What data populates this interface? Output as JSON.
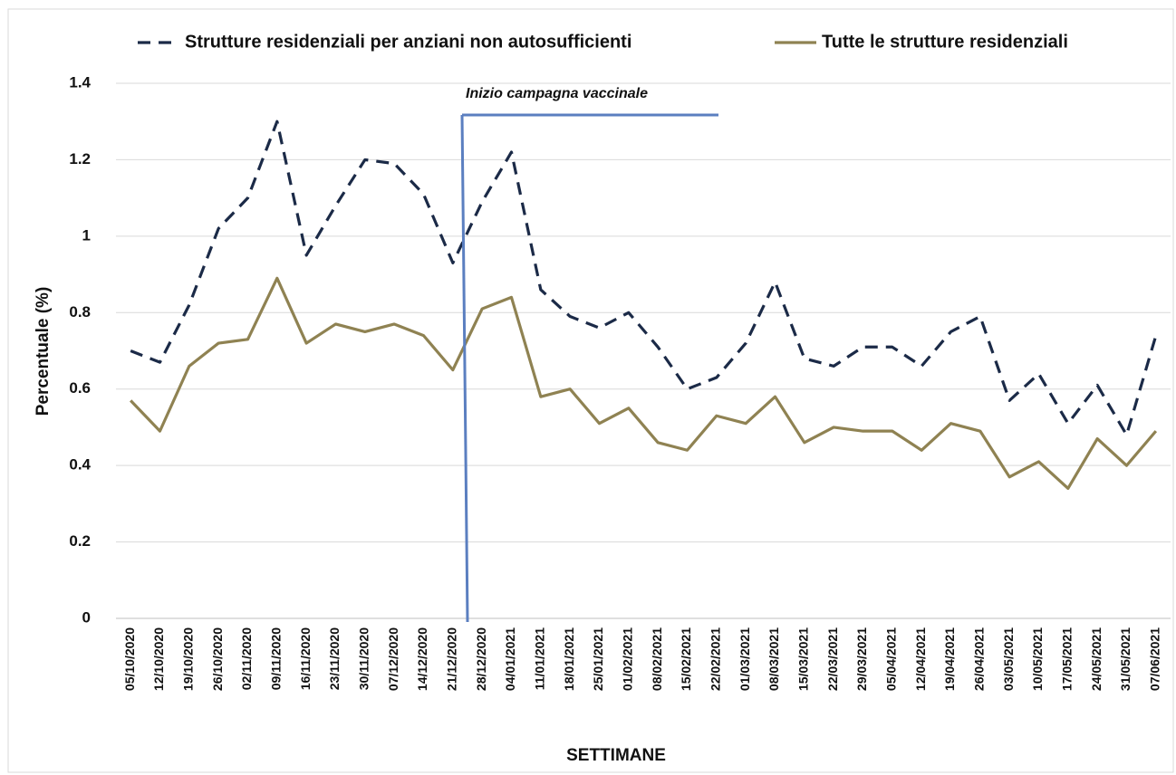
{
  "chart_data": {
    "type": "line",
    "annotation": "Inizio campagna vaccinale",
    "xlabel": "SETTIMANE",
    "ylabel": "Percentuale (%)",
    "categories": [
      "05/10/2020",
      "12/10/2020",
      "19/10/2020",
      "26/10/2020",
      "02/11/2020",
      "09/11/2020",
      "16/11/2020",
      "23/11/2020",
      "30/11/2020",
      "07/12/2020",
      "14/12/2020",
      "21/12/2020",
      "28/12/2020",
      "04/01/2021",
      "11/01/2021",
      "18/01/2021",
      "25/01/2021",
      "01/02/2021",
      "08/02/2021",
      "15/02/2021",
      "22/02/2021",
      "01/03/2021",
      "08/03/2021",
      "15/03/2021",
      "22/03/2021",
      "29/03/2021",
      "05/04/2021",
      "12/04/2021",
      "19/04/2021",
      "26/04/2021",
      "03/05/2021",
      "10/05/2021",
      "17/05/2021",
      "24/05/2021",
      "31/05/2021",
      "07/06/2021"
    ],
    "series": [
      {
        "name": "Strutture residenziali per anziani non autosufficienti",
        "color": "#1b2a47",
        "dashed": true,
        "values": [
          0.7,
          0.67,
          0.82,
          1.02,
          1.1,
          1.3,
          0.95,
          1.08,
          1.2,
          1.19,
          1.11,
          0.93,
          1.09,
          1.22,
          0.86,
          0.79,
          0.76,
          0.8,
          0.71,
          0.6,
          0.63,
          0.72,
          0.88,
          0.68,
          0.66,
          0.71,
          0.71,
          0.66,
          0.75,
          0.79,
          0.57,
          0.64,
          0.51,
          0.61,
          0.48,
          0.74
        ]
      },
      {
        "name": "Tutte le strutture residenziali",
        "color": "#8f8252",
        "dashed": false,
        "values": [
          0.57,
          0.49,
          0.66,
          0.72,
          0.73,
          0.89,
          0.72,
          0.77,
          0.75,
          0.77,
          0.74,
          0.65,
          0.81,
          0.84,
          0.58,
          0.6,
          0.51,
          0.55,
          0.46,
          0.44,
          0.53,
          0.51,
          0.58,
          0.46,
          0.5,
          0.49,
          0.49,
          0.44,
          0.51,
          0.49,
          0.37,
          0.41,
          0.34,
          0.47,
          0.4,
          0.49
        ]
      }
    ],
    "ylim": [
      0,
      1.4
    ],
    "yticks": [
      0,
      0.2,
      0.4,
      0.6,
      0.8,
      1,
      1.2,
      1.4
    ],
    "grid": true
  }
}
